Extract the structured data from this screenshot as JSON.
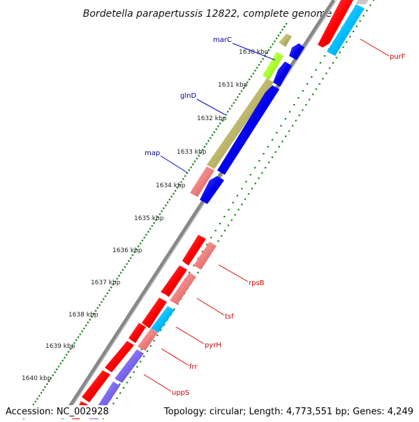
{
  "title": "Bordetella parapertussis 12822, complete genome",
  "accession": "Accession: NC_002928",
  "topology": "Topology: circular; Length: 4,773,551 bp; Genes: 4,249",
  "tick_labels": [
    "1630 kbp",
    "1631 kbp",
    "1632 kbp",
    "1633 kbp",
    "1634 kbp",
    "1635 kbp",
    "1636 kbp",
    "1637 kbp",
    "1638 kbp",
    "1639 kbp",
    "1640 kbp"
  ],
  "genes": [
    {
      "name": "marC",
      "color": "#00008b"
    },
    {
      "name": "glnD",
      "color": "#00008b"
    },
    {
      "name": "map",
      "color": "#00008b"
    },
    {
      "name": "purF",
      "color": "#cc0000"
    },
    {
      "name": "rpsB",
      "color": "#cc0000"
    },
    {
      "name": "tsf",
      "color": "#cc0000"
    },
    {
      "name": "pyrH",
      "color": "#cc0000"
    },
    {
      "name": "frr",
      "color": "#cc0000"
    },
    {
      "name": "uppS",
      "color": "#cc0000"
    }
  ],
  "colors": {
    "red": "#ff0000",
    "pink": "#f08080",
    "olive": "#bdb76b",
    "lime": "#adff2f",
    "blue": "#0000ee",
    "cyan": "#00bfff",
    "purple": "#7b68ee",
    "backbone": "#808080",
    "tick": "#228b22"
  }
}
